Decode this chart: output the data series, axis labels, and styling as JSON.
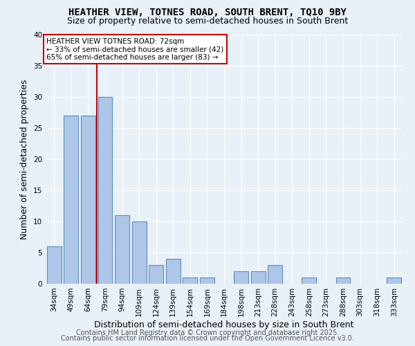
{
  "title": "HEATHER VIEW, TOTNES ROAD, SOUTH BRENT, TQ10 9BY",
  "subtitle": "Size of property relative to semi-detached houses in South Brent",
  "xlabel": "Distribution of semi-detached houses by size in South Brent",
  "ylabel": "Number of semi-detached properties",
  "categories": [
    "34sqm",
    "49sqm",
    "64sqm",
    "79sqm",
    "94sqm",
    "109sqm",
    "124sqm",
    "139sqm",
    "154sqm",
    "169sqm",
    "184sqm",
    "198sqm",
    "213sqm",
    "228sqm",
    "243sqm",
    "258sqm",
    "273sqm",
    "288sqm",
    "303sqm",
    "318sqm",
    "333sqm"
  ],
  "values": [
    6,
    27,
    27,
    30,
    11,
    10,
    3,
    4,
    1,
    1,
    0,
    2,
    2,
    3,
    0,
    1,
    0,
    1,
    0,
    0,
    1
  ],
  "bar_color": "#aec6e8",
  "bar_edge_color": "#5b8db8",
  "reference_line_x": 2.5,
  "reference_label": "HEATHER VIEW TOTNES ROAD: 72sqm",
  "pct_smaller": 33,
  "pct_smaller_count": 42,
  "pct_larger": 65,
  "pct_larger_count": 83,
  "annotation_box_color": "#ffffff",
  "annotation_box_edge_color": "#cc0000",
  "ref_line_color": "#cc0000",
  "ylim": [
    0,
    40
  ],
  "yticks": [
    0,
    5,
    10,
    15,
    20,
    25,
    30,
    35,
    40
  ],
  "footer1": "Contains HM Land Registry data © Crown copyright and database right 2025.",
  "footer2": "Contains public sector information licensed under the Open Government Licence v3.0.",
  "bg_color": "#e8f0f8",
  "plot_bg_color": "#e8f0f8",
  "grid_color": "#ffffff",
  "title_fontsize": 10,
  "subtitle_fontsize": 9,
  "axis_label_fontsize": 9,
  "tick_fontsize": 7.5,
  "footer_fontsize": 7,
  "annotation_fontsize": 7.5
}
